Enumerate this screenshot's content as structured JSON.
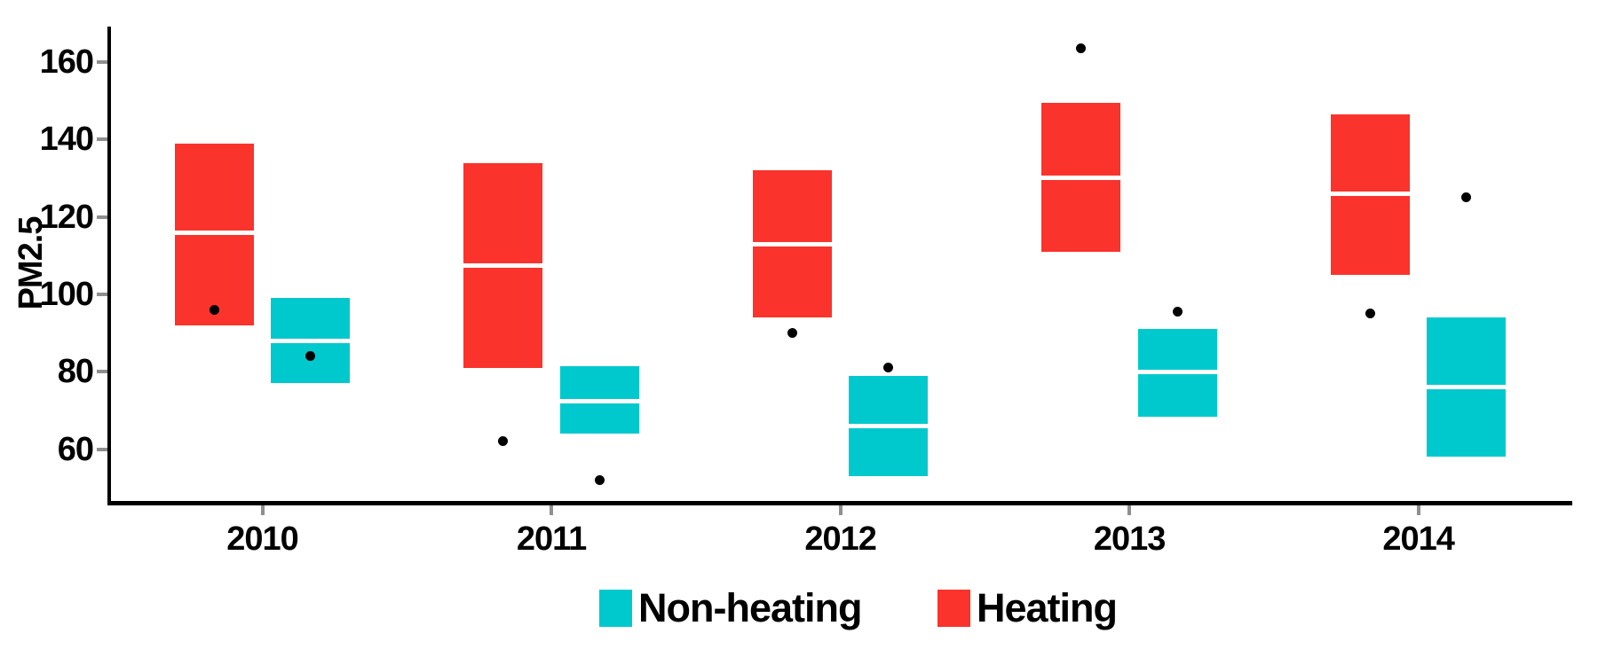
{
  "chart_data": {
    "type": "crossbar-boxplot",
    "title": "",
    "ylabel": "PM2.5",
    "xlabel": "",
    "categories": [
      "2010",
      "2011",
      "2012",
      "2013",
      "2014"
    ],
    "yticks": [
      60,
      80,
      100,
      120,
      140,
      160
    ],
    "ylim": [
      46,
      169
    ],
    "grid": false,
    "legend_position": "bottom",
    "series": [
      {
        "name": "Heating",
        "color": "#FA332C",
        "boxes": [
          {
            "category": "2010",
            "ymin": 92,
            "median": 116,
            "ymax": 139
          },
          {
            "category": "2011",
            "ymin": 81,
            "median": 107.5,
            "ymax": 134
          },
          {
            "category": "2012",
            "ymin": 94,
            "median": 113,
            "ymax": 132
          },
          {
            "category": "2013",
            "ymin": 111,
            "median": 130,
            "ymax": 149.5
          },
          {
            "category": "2014",
            "ymin": 105,
            "median": 126,
            "ymax": 146.5
          }
        ],
        "points": [
          {
            "category": "2010",
            "value": 96
          },
          {
            "category": "2011",
            "value": 62
          },
          {
            "category": "2012",
            "value": 90
          },
          {
            "category": "2013",
            "value": 163.5
          },
          {
            "category": "2014",
            "value": 95
          }
        ]
      },
      {
        "name": "Non-heating",
        "color": "#00C9CE",
        "boxes": [
          {
            "category": "2010",
            "ymin": 77,
            "median": 88,
            "ymax": 99
          },
          {
            "category": "2011",
            "ymin": 64,
            "median": 72.5,
            "ymax": 81.5
          },
          {
            "category": "2012",
            "ymin": 53,
            "median": 66,
            "ymax": 79
          },
          {
            "category": "2013",
            "ymin": 68.5,
            "median": 80,
            "ymax": 91
          },
          {
            "category": "2014",
            "ymin": 58,
            "median": 76,
            "ymax": 94
          }
        ],
        "points": [
          {
            "category": "2010",
            "value": 84
          },
          {
            "category": "2011",
            "value": 52
          },
          {
            "category": "2012",
            "value": 81
          },
          {
            "category": "2013",
            "value": 95.5
          },
          {
            "category": "2014",
            "value": 125
          }
        ]
      }
    ],
    "legend": [
      {
        "label": "Non-heating",
        "color": "#00C9CE"
      },
      {
        "label": "Heating",
        "color": "#FA332C"
      }
    ]
  },
  "colors": {
    "axis_line": "#000000",
    "tick_mark": "#8F8F8F",
    "point": "#000000",
    "background": "#FFFFFF",
    "heating": "#FA332C",
    "non_heating": "#00C9CE"
  }
}
